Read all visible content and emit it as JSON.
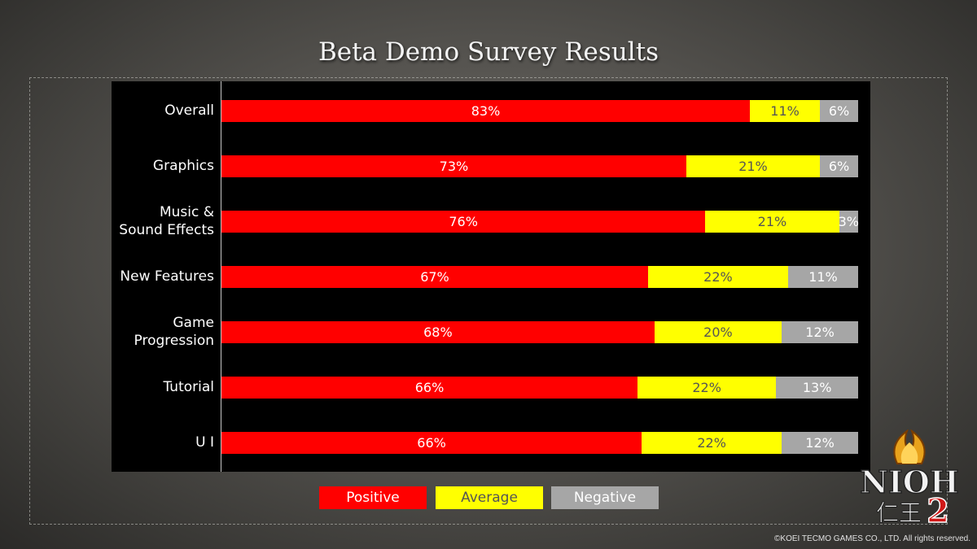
{
  "title": "Beta Demo Survey Results",
  "chart_data": {
    "type": "bar",
    "orientation": "horizontal",
    "stacked": true,
    "percent": true,
    "title": "Beta Demo Survey Results",
    "categories": [
      "Overall",
      "Graphics",
      "Music & Sound Effects",
      "New Features",
      "Game Progression",
      "Tutorial",
      "U I"
    ],
    "category_lines": [
      [
        "Overall"
      ],
      [
        "Graphics"
      ],
      [
        "Music &",
        "Sound Effects"
      ],
      [
        "New Features"
      ],
      [
        "Game",
        "Progression"
      ],
      [
        "Tutorial"
      ],
      [
        "U I"
      ]
    ],
    "series": [
      {
        "name": "Positive",
        "color": "#ff0000",
        "values": [
          83,
          73,
          76,
          67,
          68,
          66,
          66
        ]
      },
      {
        "name": "Average",
        "color": "#ffff00",
        "values": [
          11,
          21,
          21,
          22,
          20,
          22,
          22
        ]
      },
      {
        "name": "Negative",
        "color": "#a6a6a6",
        "values": [
          6,
          6,
          3,
          11,
          12,
          13,
          12
        ]
      }
    ],
    "legend_position": "bottom",
    "background": "#000000"
  },
  "legend": {
    "positive": "Positive",
    "average": "Average",
    "negative": "Negative"
  },
  "logo": {
    "icon": "nioh2-logo",
    "text": "NIOH",
    "kanji": "仁王",
    "number": "2"
  },
  "copyright": "©KOEI TECMO GAMES CO., LTD. All rights reserved."
}
